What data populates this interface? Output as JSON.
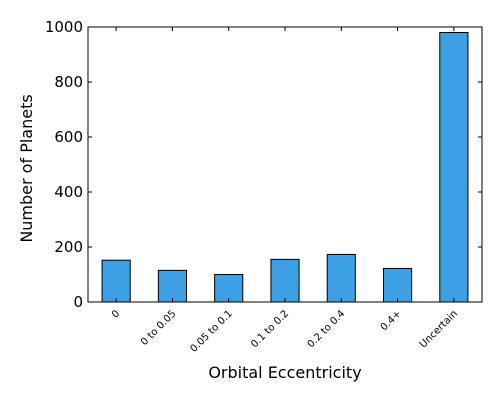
{
  "chart_data": {
    "type": "bar",
    "title": "",
    "xlabel": "Orbital Eccentricity",
    "ylabel": "Number of Planets",
    "categories": [
      "0",
      "0 to 0.05",
      "0.05 to 0.1",
      "0.1 to 0.2",
      "0.2 to 0.4",
      "0.4+",
      "Uncertain"
    ],
    "values": [
      152,
      115,
      100,
      155,
      173,
      122,
      980
    ],
    "ylim": [
      0,
      1000
    ],
    "yticks": [
      0,
      200,
      400,
      600,
      800,
      1000
    ],
    "bar_color": "#3d9fe4",
    "edge_color": "#000000",
    "grid": false,
    "legend": "none",
    "x_tick_rotation": "45 degrees"
  }
}
